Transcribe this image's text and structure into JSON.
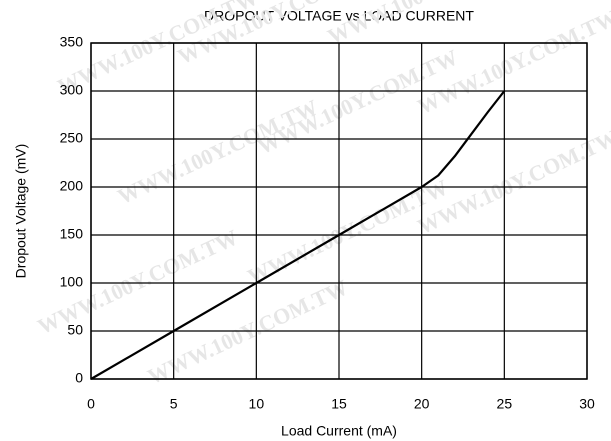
{
  "chart_data": {
    "type": "line",
    "title": "DROPOUT VOLTAGE vs LOAD CURRENT",
    "x_label": "Load Current (mA)",
    "y_label": "Dropout Voltage (mV)",
    "watermark": "WWW.100Y.COM.TW",
    "x": [
      0,
      5,
      10,
      15,
      20,
      21,
      22,
      23,
      24,
      25
    ],
    "series": [
      {
        "name": "Dropout Voltage",
        "color": "#000000",
        "values": [
          0,
          50,
          100,
          150,
          200,
          212,
          232,
          255,
          278,
          300
        ]
      }
    ],
    "xlim": [
      0,
      30
    ],
    "xticks": [
      0,
      5,
      10,
      15,
      20,
      25,
      30
    ],
    "ylim": [
      0,
      350
    ],
    "yticks": [
      0,
      50,
      100,
      150,
      200,
      250,
      300,
      350
    ],
    "grid": true
  }
}
